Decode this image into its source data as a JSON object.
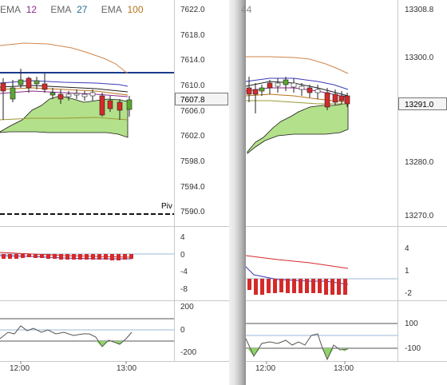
{
  "colors": {
    "ema12": "#8b2a8b",
    "ema27": "#1f6f8b",
    "ema100": "#b8741a",
    "cloud_fill": "#b3e08a",
    "cloud_edge": "#1a1a1a",
    "bull": "#5aa832",
    "bear": "#d42a2a",
    "pivot_blue": "#1a3a8c",
    "grid": "#9a9a9a",
    "signal_line": "#555555",
    "cci_fill": "#8fd46a"
  },
  "left": {
    "legend": [
      {
        "name": "EMA",
        "period": "12"
      },
      {
        "name": "EMA",
        "period": "27"
      },
      {
        "name": "EMA",
        "period": "100"
      }
    ],
    "price_axis": [
      "7622.0",
      "7618.0",
      "7614.0",
      "7610.0",
      "7606.0",
      "7602.0",
      "7598.0",
      "7594.0",
      "7590.0"
    ],
    "current_price": "7607.8",
    "pivot_label": "Piv",
    "macd_axis": [
      "4",
      "0",
      "-4",
      "-8"
    ],
    "cci_axis": [
      "200",
      "0",
      "-200"
    ],
    "time_axis": [
      "12:00",
      "13:00"
    ]
  },
  "right": {
    "header_fragment": "44",
    "price_axis": [
      "13308.8",
      "13300.0",
      "13291.0",
      "13280.0",
      "13270.0"
    ],
    "current_price": "13291.0",
    "macd_axis": [
      "4",
      "1",
      "-2"
    ],
    "cci_axis": [
      "100",
      "-100"
    ],
    "time_axis": [
      "12:00",
      "13:00"
    ]
  }
}
